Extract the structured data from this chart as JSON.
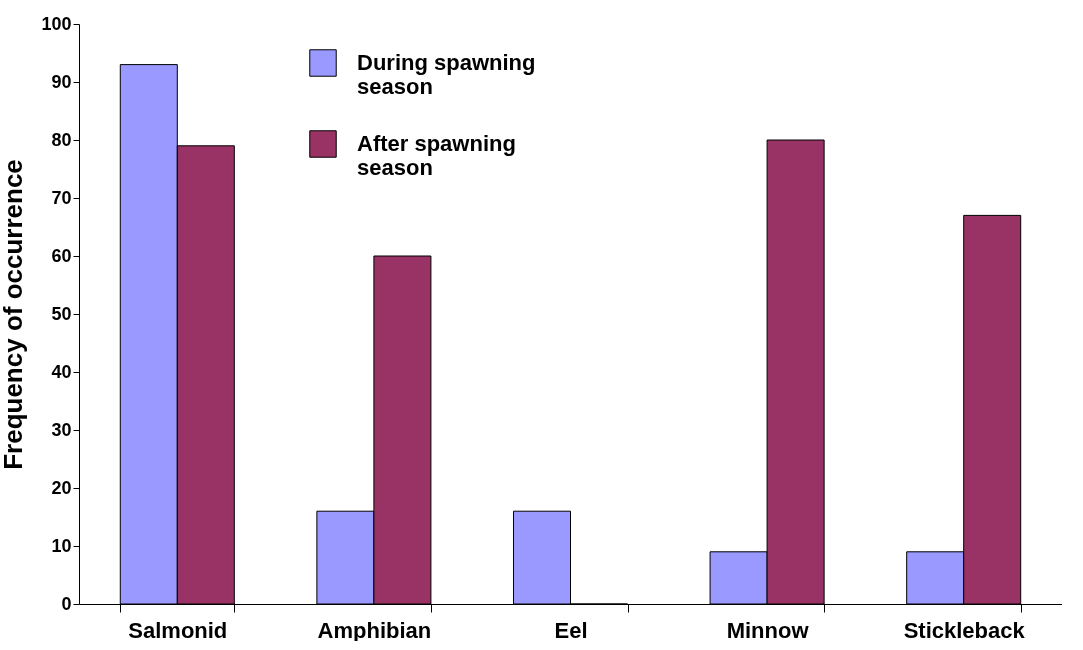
{
  "chart_data": {
    "type": "bar",
    "ylabel": "Frequency of occurrence",
    "categories": [
      "Salmonid",
      "Amphibian",
      "Eel",
      "Minnow",
      "Stickleback"
    ],
    "series": [
      {
        "name": "During spawning season",
        "color": "#9999ff",
        "values": [
          93,
          16,
          16,
          9,
          9
        ]
      },
      {
        "name": "After spawning season",
        "color": "#993366",
        "values": [
          79,
          60,
          0,
          80,
          67
        ]
      }
    ],
    "ylim": [
      0,
      100
    ],
    "yticks": [
      0,
      10,
      20,
      30,
      40,
      50,
      60,
      70,
      80,
      90,
      100
    ],
    "grid": false,
    "legend": "top"
  }
}
